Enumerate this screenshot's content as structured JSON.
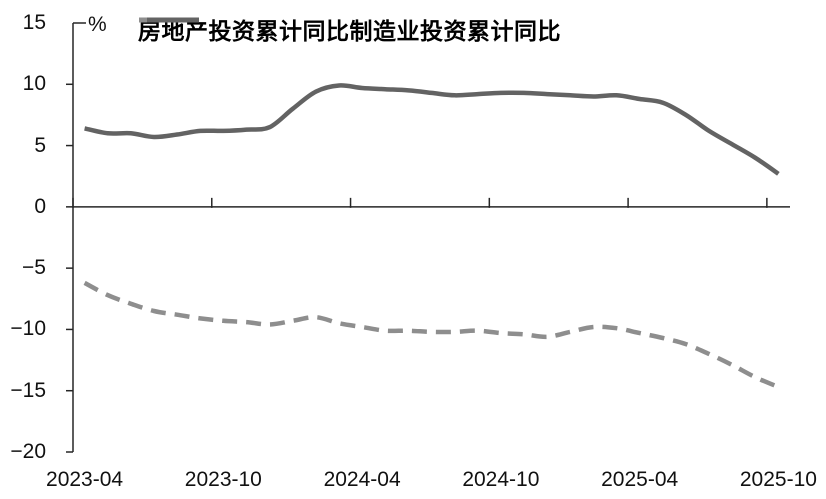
{
  "chart_data": {
    "type": "line",
    "title": "",
    "ylabel": "%",
    "xlabel": "",
    "ylim": [
      -20,
      15
    ],
    "grid": false,
    "legend_position": "top-center",
    "y_ticks": [
      15,
      10,
      5,
      0,
      -5,
      -10,
      -15,
      -20
    ],
    "y_tick_labels": [
      "15",
      "10",
      "5",
      "0",
      "−5",
      "−10",
      "−15",
      "−20"
    ],
    "x_categories": [
      "2023-04",
      "2023-05",
      "2023-06",
      "2023-07",
      "2023-08",
      "2023-09",
      "2023-10",
      "2023-11",
      "2023-12",
      "2024-01",
      "2024-02",
      "2024-03",
      "2024-04",
      "2024-05",
      "2024-06",
      "2024-07",
      "2024-08",
      "2024-09",
      "2024-10",
      "2024-11",
      "2024-12",
      "2025-01",
      "2025-02",
      "2025-03",
      "2025-04",
      "2025-05",
      "2025-06",
      "2025-07",
      "2025-08",
      "2025-09",
      "2025-10"
    ],
    "x_axis_labels": [
      "2023-04",
      "2023-10",
      "2024-04",
      "2024-10",
      "2025-04",
      "2025-10"
    ],
    "series": [
      {
        "name": "房地产投资累计同比",
        "line_style": "dashed",
        "color": "#8E8E8E",
        "values": [
          -6.2,
          -7.2,
          -7.9,
          -8.5,
          -8.8,
          -9.1,
          -9.3,
          -9.4,
          -9.6,
          -9.3,
          -9.0,
          -9.5,
          -9.8,
          -10.1,
          -10.1,
          -10.2,
          -10.2,
          -10.1,
          -10.3,
          -10.4,
          -10.6,
          -10.2,
          -9.8,
          -9.9,
          -10.3,
          -10.7,
          -11.2,
          -12.0,
          -12.9,
          -13.9,
          -14.7
        ]
      },
      {
        "name": "制造业投资累计同比",
        "line_style": "solid",
        "color": "#636363",
        "values": [
          6.4,
          6.0,
          6.0,
          5.7,
          5.9,
          6.2,
          6.2,
          6.3,
          6.5,
          8.0,
          9.4,
          9.9,
          9.7,
          9.6,
          9.5,
          9.3,
          9.1,
          9.2,
          9.3,
          9.3,
          9.2,
          9.1,
          9.0,
          9.1,
          8.8,
          8.5,
          7.5,
          6.2,
          5.1,
          4.0,
          2.7
        ]
      }
    ]
  }
}
